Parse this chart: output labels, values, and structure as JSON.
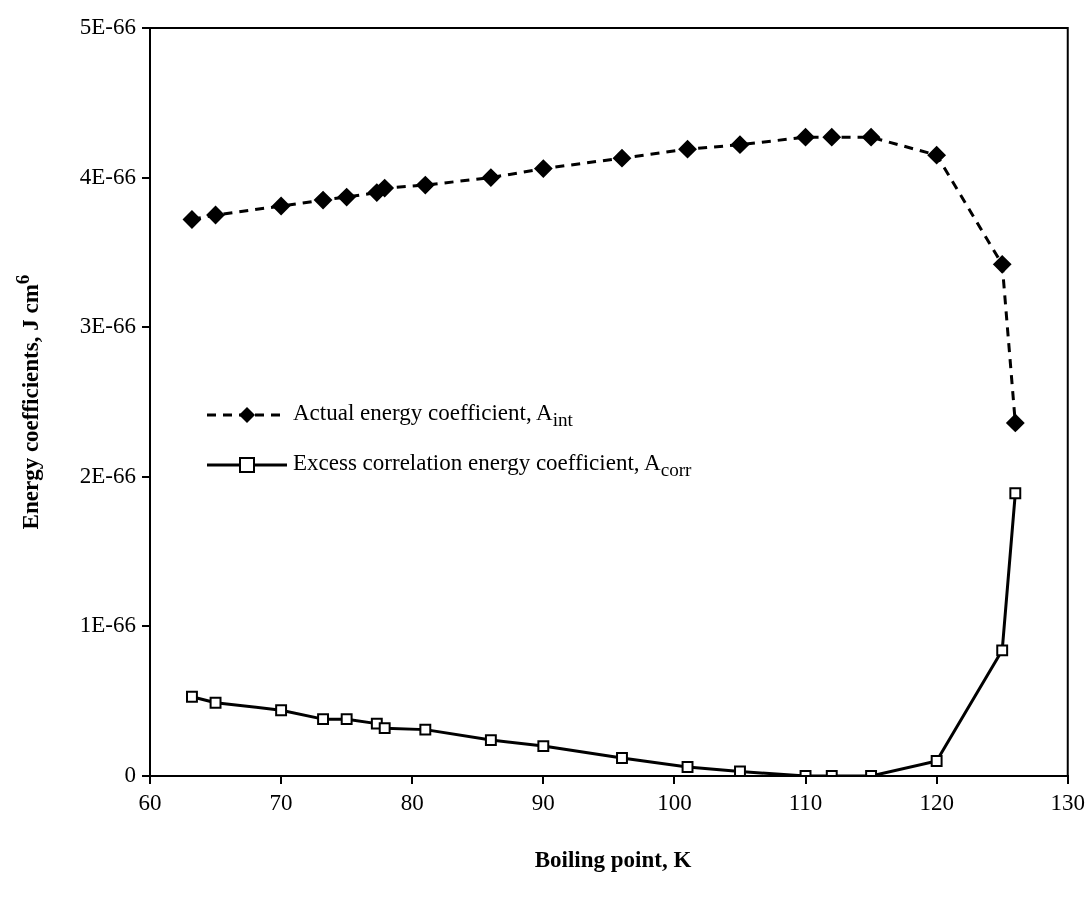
{
  "chart_data": {
    "type": "line",
    "xlabel": "Boiling point, K",
    "ylabel": "Energy coefficients, J cm$^{6}$",
    "x": [
      63.2,
      65,
      70,
      73.2,
      75,
      77.3,
      77.9,
      81,
      86,
      90,
      96,
      101,
      105,
      110,
      112,
      115,
      120,
      125,
      126
    ],
    "series": [
      {
        "name": "Actual energy coefficient, A$_{int}$",
        "color": "#000000",
        "marker": "diamond",
        "line_style": "dashed",
        "values": [
          3.72e-66,
          3.75e-66,
          3.81e-66,
          3.85e-66,
          3.87e-66,
          3.9e-66,
          3.93e-66,
          3.95e-66,
          4e-66,
          4.06e-66,
          4.13e-66,
          4.19e-66,
          4.22e-66,
          4.27e-66,
          4.27e-66,
          4.27e-66,
          4.15e-66,
          3.42e-66,
          2.36e-66
        ]
      },
      {
        "name": "Excess correlation energy coefficient, A$_{corr}$",
        "color": "#000000",
        "marker": "square",
        "line_style": "solid",
        "values": [
          5.3e-67,
          4.9e-67,
          4.4e-67,
          3.8e-67,
          3.8e-67,
          3.5e-67,
          3.2e-67,
          3.1e-67,
          2.4e-67,
          2e-67,
          1.2e-67,
          6e-68,
          3e-68,
          0.0,
          0.0,
          0.0,
          1e-67,
          8.4e-67,
          1.89e-66
        ]
      }
    ],
    "xlim": [
      60,
      130
    ],
    "xticks": [
      60,
      70,
      80,
      90,
      100,
      110,
      120,
      130
    ],
    "ylim": [
      0,
      5e-66
    ],
    "yticks": [
      0,
      {
        "value": 1e-66,
        "label": "1E-66"
      },
      {
        "value": 2e-66,
        "label": "2E-66"
      },
      {
        "value": 3e-66,
        "label": "3E-66"
      },
      {
        "value": 4e-66,
        "label": "4E-66"
      },
      {
        "value": 5e-66,
        "label": "5E-66"
      }
    ],
    "grid": false,
    "legend": "left"
  }
}
